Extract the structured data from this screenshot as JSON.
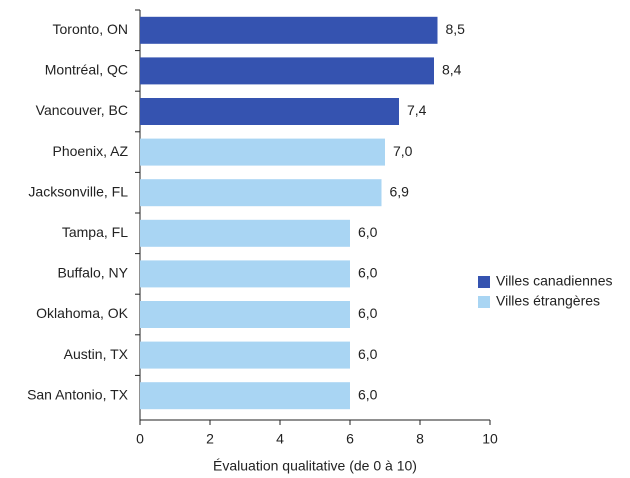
{
  "chart_data": {
    "type": "barh",
    "categories": [
      "Toronto, ON",
      "Montréal, QC",
      "Vancouver, BC",
      "Phoenix, AZ",
      "Jacksonville, FL",
      "Tampa, FL",
      "Buffalo, NY",
      "Oklahoma, OK",
      "Austin, TX",
      "San Antonio, TX"
    ],
    "series": [
      {
        "name": "Villes canadiennes",
        "color": "#3553b0",
        "values": [
          8.5,
          8.4,
          7.4,
          null,
          null,
          null,
          null,
          null,
          null,
          null
        ],
        "value_labels": [
          "8,5",
          "8,4",
          "7,4",
          null,
          null,
          null,
          null,
          null,
          null,
          null
        ]
      },
      {
        "name": "Villes étrangères",
        "color": "#a9d5f3",
        "values": [
          null,
          null,
          null,
          7.0,
          6.9,
          6.0,
          6.0,
          6.0,
          6.0,
          6.0
        ],
        "value_labels": [
          null,
          null,
          null,
          "7,0",
          "6,9",
          "6,0",
          "6,0",
          "6,0",
          "6,0",
          "6,0"
        ]
      }
    ],
    "xlabel": "Évaluation qualitative (de 0 à 10)",
    "xlim": [
      0,
      10
    ],
    "xticks": [
      0,
      2,
      4,
      6,
      8,
      10
    ],
    "legend": "right"
  }
}
